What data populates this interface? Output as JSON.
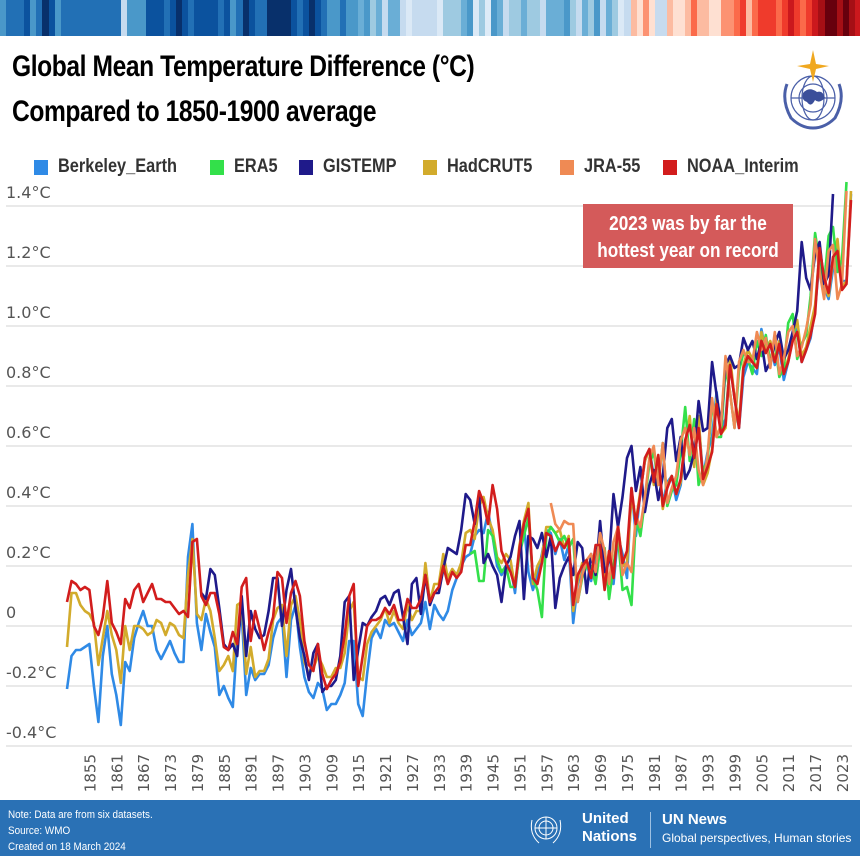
{
  "stripes": [
    "#4a98c9",
    "#2270b5",
    "#2270b5",
    "#2270b5",
    "#0b529e",
    "#4a98c9",
    "#2270b5",
    "#08306b",
    "#0b529e",
    "#4a98c9",
    "#2270b5",
    "#2270b5",
    "#2270b5",
    "#2270b5",
    "#2270b5",
    "#2270b5",
    "#2270b5",
    "#2270b5",
    "#2270b5",
    "#2270b5",
    "#c6dbef",
    "#4a98c9",
    "#4a98c9",
    "#4a98c9",
    "#0b529e",
    "#0b529e",
    "#0b529e",
    "#2270b5",
    "#0b529e",
    "#08306b",
    "#0b529e",
    "#2270b5",
    "#0b529e",
    "#0b529e",
    "#0b529e",
    "#0b529e",
    "#2270b5",
    "#0b529e",
    "#4a98c9",
    "#2270b5",
    "#08306b",
    "#0b529e",
    "#2270b5",
    "#2270b5",
    "#08306b",
    "#08306b",
    "#08306b",
    "#08306b",
    "#0b529e",
    "#2270b5",
    "#0b529e",
    "#08306b",
    "#0b529e",
    "#2270b5",
    "#4a98c9",
    "#4a98c9",
    "#2270b5",
    "#4a98c9",
    "#4a98c9",
    "#6aaed6",
    "#4a98c9",
    "#9ecae1",
    "#6aaed6",
    "#c6dbef",
    "#6aaed6",
    "#6aaed6",
    "#c6dbef",
    "#dbe9f6",
    "#c6dbef",
    "#c6dbef",
    "#c6dbef",
    "#c6dbef",
    "#dbe9f6",
    "#9ecae1",
    "#9ecae1",
    "#9ecae1",
    "#6aaed6",
    "#4a98c9",
    "#dbe9f6",
    "#9ecae1",
    "#deebf7",
    "#4a98c9",
    "#6aaed6",
    "#c6dbef",
    "#9ecae1",
    "#9ecae1",
    "#6aaed6",
    "#9ecae1",
    "#9ecae1",
    "#c6dbef",
    "#6aaed6",
    "#6aaed6",
    "#6aaed6",
    "#4a98c9",
    "#9ecae1",
    "#c6dbef",
    "#6aaed6",
    "#9ecae1",
    "#4a98c9",
    "#c6dbef",
    "#6aaed6",
    "#9ecae1",
    "#dbe9f6",
    "#c6dbef",
    "#fcbba1",
    "#fee0d2",
    "#fc9272",
    "#fee0d2",
    "#c6dbef",
    "#c6dbef",
    "#fcbba1",
    "#fee0d2",
    "#fee0d2",
    "#fcbba1",
    "#fb6a4a",
    "#fcbba1",
    "#fcbba1",
    "#fee0d2",
    "#fee0d2",
    "#fc9272",
    "#fc9272",
    "#fb6a4a",
    "#ef3b2c",
    "#fcbba1",
    "#fb6a4a",
    "#ef3b2c",
    "#ef3b2c",
    "#ef3b2c",
    "#fb6a4a",
    "#ef3b2c",
    "#cb181d",
    "#ef3b2c",
    "#fb6a4a",
    "#ef3b2c",
    "#cb181d",
    "#a50f15",
    "#67000d",
    "#67000d",
    "#a50f15",
    "#67000d",
    "#a50f15",
    "#cb181d"
  ],
  "header": {
    "title_line1": "Global Mean Temperature Difference (°C)",
    "title_line2": "Compared to 1850-1900 average",
    "logo": "wmo-emblem"
  },
  "footer": {
    "note": "Note:  Data are from six datasets.",
    "source": "Source: WMO",
    "created": "Created on 18 March 2024",
    "un_line1": "United",
    "un_line2": "Nations",
    "un_news": "UN News",
    "tagline": "Global perspectives, Human stories"
  },
  "chart_data": {
    "type": "line",
    "title": "Global Mean Temperature Difference (°C) Compared to 1850-1900 average",
    "xlabel": "",
    "ylabel": "",
    "ylim": [
      -0.4,
      1.4
    ],
    "xlim": [
      1850,
      2023
    ],
    "grid": true,
    "legend_position": "top",
    "y_ticks": [
      1.4,
      1.2,
      1.0,
      0.8,
      0.6,
      0.4,
      0.2,
      0,
      -0.2,
      -0.4
    ],
    "y_tick_labels": [
      "1.4°C",
      "1.2°C",
      "1.0°C",
      "0.8°C",
      "0.6°C",
      "0.4°C",
      "0.2°C",
      "0",
      "-0.2°C",
      "-0.4°C"
    ],
    "x_ticks": [
      "1855",
      "1861",
      "1867",
      "1873",
      "1879",
      "1885",
      "1891",
      "1897",
      "1903",
      "1909",
      "1915",
      "1921",
      "1927",
      "1933",
      "1939",
      "1945",
      "1951",
      "1957",
      "1963",
      "1969",
      "1975",
      "1981",
      "1987",
      "1993",
      "1999",
      "2005",
      "2011",
      "2017",
      "2023"
    ],
    "annotation": "2023 was by far the hottest year on record",
    "annotation_color": "#d45a5a",
    "series": [
      {
        "name": "Berkeley_Earth",
        "color": "#2f8ae6",
        "start": 1850,
        "values": [
          -0.21,
          -0.1,
          -0.08,
          -0.08,
          -0.07,
          -0.06,
          -0.2,
          -0.32,
          -0.1,
          0,
          -0.16,
          -0.23,
          -0.33,
          -0.12,
          -0.15,
          -0.04,
          0.01,
          0.05,
          0,
          0,
          -0.08,
          -0.11,
          -0.08,
          -0.05,
          -0.09,
          -0.12,
          -0.12,
          0.23,
          0.34,
          0.01,
          -0.08,
          0.04,
          -0.02,
          -0.07,
          -0.23,
          -0.2,
          -0.24,
          -0.27,
          -0.04,
          0.04,
          -0.23,
          -0.14,
          -0.18,
          -0.16,
          -0.16,
          -0.13,
          -0.04,
          0.01,
          0.03,
          -0.17,
          0.02,
          0.07,
          -0.07,
          -0.17,
          -0.22,
          -0.24,
          -0.19,
          -0.21,
          -0.28,
          -0.26,
          -0.26,
          -0.23,
          -0.19,
          -0.05,
          -0.05,
          -0.26,
          -0.3,
          -0.16,
          -0.04,
          -0.01,
          -0.04,
          0.02,
          0,
          0.01,
          -0.02,
          -0.05,
          0.02,
          -0.03,
          -0.01,
          0.01,
          0.08,
          -0.01,
          0.07,
          0.04,
          0.02,
          0.05,
          0.12,
          0.16,
          0.2,
          0.23,
          0.24,
          0.3,
          0.32,
          0.31,
          0.38,
          0.3,
          0.2,
          0.17,
          0.2,
          0.2,
          0.11,
          0.26,
          0.34,
          0.18,
          0.12,
          0.17,
          0.24,
          0.32,
          0.31,
          0.24,
          0.29,
          0.22,
          0.27,
          0.01,
          0.14,
          0.19,
          0.21,
          0.15,
          0.23,
          0.29,
          0.13,
          0.24,
          0.14,
          0.3,
          0.24,
          0.16,
          0.46,
          0.3,
          0.45,
          0.55,
          0.59,
          0.5,
          0.54,
          0.41,
          0.48,
          0.5,
          0.42,
          0.47,
          0.61,
          0.69,
          0.56,
          0.68,
          0.5,
          0.58,
          0.63,
          0.78,
          0.65,
          0.69,
          0.88,
          0.76,
          0.66,
          0.83,
          0.88,
          0.86,
          0.84,
          0.99,
          0.91,
          0.94,
          0.87,
          0.93,
          0.82,
          0.88,
          0.96,
          0.99,
          0.88,
          0.92,
          0.96,
          1.06,
          1.22,
          1.13,
          1.09,
          1.19,
          1.26,
          1.15,
          1.15,
          1.44
        ]
      },
      {
        "name": "ERA5",
        "color": "#33e04a",
        "start": 1940,
        "values": [
          0.24,
          0.25,
          0.15,
          0.15,
          0.32,
          0.3,
          0.22,
          0.18,
          0.2,
          0.13,
          0.13,
          0.24,
          0.3,
          0.36,
          0.16,
          0.12,
          0.03,
          0.3,
          0.33,
          0.31,
          0.28,
          0.3,
          0.26,
          0.29,
          0.08,
          0.16,
          0.2,
          0.2,
          0.14,
          0.26,
          0.26,
          0.09,
          0.2,
          0.3,
          0.12,
          0.13,
          0.07,
          0.36,
          0.3,
          0.42,
          0.54,
          0.58,
          0.47,
          0.61,
          0.4,
          0.45,
          0.47,
          0.58,
          0.73,
          0.55,
          0.69,
          0.47,
          0.52,
          0.55,
          0.75,
          0.63,
          0.63,
          0.86,
          0.78,
          0.66,
          0.85,
          0.91,
          0.89,
          0.84,
          0.95,
          0.9,
          0.97,
          0.88,
          0.95,
          0.83,
          0.86,
          1.01,
          1.04,
          0.89,
          0.94,
          0.97,
          1.1,
          1.31,
          1.21,
          1.14,
          1.3,
          1.33,
          1.18,
          1.22,
          1.48
        ]
      },
      {
        "name": "GISTEMP",
        "color": "#1f1a8a",
        "start": 1880,
        "values": [
          0.11,
          0.09,
          0.19,
          0.17,
          0.06,
          -0.06,
          -0.08,
          -0.06,
          -0.1,
          0.1,
          -0.1,
          0.05,
          -0.01,
          -0.04,
          -0.03,
          0.05,
          0.16,
          0.16,
          0,
          0.12,
          0.19,
          0.06,
          -0.04,
          -0.1,
          -0.18,
          -0.09,
          -0.06,
          -0.22,
          -0.2,
          -0.2,
          -0.18,
          -0.1,
          0.08,
          0.1,
          -0.18,
          -0.08,
          0.01,
          0,
          0.03,
          0.05,
          0.09,
          0.1,
          0.07,
          0.11,
          0.12,
          0.03,
          -0.06,
          0.14,
          0.16,
          0.04,
          0.17,
          0.07,
          0.11,
          0.11,
          0.19,
          0.26,
          0.25,
          0.24,
          0.32,
          0.44,
          0.42,
          0.34,
          0.44,
          0.21,
          0.24,
          0.2,
          0.17,
          0.08,
          0.2,
          0.23,
          0.3,
          0.35,
          0.09,
          0.3,
          0.29,
          0.26,
          0.31,
          0.23,
          0.3,
          0.06,
          0.16,
          0.2,
          0.23,
          0.17,
          0.28,
          0.26,
          0.11,
          0.24,
          0.17,
          0.35,
          0.18,
          0.22,
          0.44,
          0.33,
          0.43,
          0.56,
          0.6,
          0.45,
          0.53,
          0.38,
          0.47,
          0.52,
          0.42,
          0.5,
          0.66,
          0.69,
          0.55,
          0.63,
          0.49,
          0.52,
          0.58,
          0.75,
          0.65,
          0.66,
          0.88,
          0.77,
          0.67,
          0.87,
          0.9,
          0.86,
          0.87,
          0.96,
          0.92,
          0.95,
          0.89,
          0.95,
          0.85,
          0.88,
          0.94,
          0.98,
          0.89,
          0.92,
          0.98,
          1.05,
          1.28,
          1.16,
          1.12,
          1.24,
          1.28,
          1.14,
          1.17,
          1.44
        ]
      },
      {
        "name": "HadCRUT5",
        "color": "#d2ab2c",
        "start": 1850,
        "values": [
          -0.07,
          0.11,
          0.11,
          0.07,
          0.05,
          0.04,
          0.01,
          -0.13,
          -0.04,
          0.05,
          -0.03,
          -0.08,
          -0.19,
          0,
          -0.08,
          0,
          0,
          -0.01,
          -0.03,
          -0.02,
          0.02,
          0.01,
          -0.03,
          0.01,
          0,
          -0.03,
          -0.04,
          0.17,
          0.29,
          0.04,
          0.02,
          0.09,
          0.05,
          -0.04,
          -0.15,
          -0.13,
          -0.1,
          -0.15,
          0.07,
          0.08,
          -0.16,
          -0.07,
          -0.17,
          -0.15,
          -0.15,
          -0.11,
          0.02,
          0.06,
          0.07,
          -0.1,
          0.07,
          0.1,
          0.02,
          -0.12,
          -0.16,
          -0.14,
          -0.1,
          -0.13,
          -0.17,
          -0.17,
          -0.14,
          -0.14,
          -0.09,
          0.05,
          0.08,
          -0.17,
          -0.18,
          -0.06,
          -0.02,
          0,
          0.02,
          0.06,
          0.01,
          0.05,
          0.01,
          -0.01,
          0.07,
          0.02,
          0.05,
          0.05,
          0.21,
          0.08,
          0.14,
          0.14,
          0.24,
          0.16,
          0.19,
          0.17,
          0.21,
          0.31,
          0.32,
          0.29,
          0.4,
          0.43,
          0.36,
          0.32,
          0.23,
          0.21,
          0.24,
          0.22,
          0.13,
          0.27,
          0.35,
          0.41,
          0.14,
          0.2,
          0.23,
          0.33,
          0.33,
          0.31,
          0.32,
          0.26,
          0.3,
          0.05,
          0.15,
          0.21,
          0.22,
          0.17,
          0.25,
          0.28,
          0.14,
          0.25,
          0.18,
          0.34,
          0.2,
          0.21,
          0.43,
          0.35,
          0.45,
          0.55,
          0.59,
          0.47,
          0.56,
          0.39,
          0.47,
          0.5,
          0.44,
          0.48,
          0.6,
          0.7,
          0.53,
          0.7,
          0.47,
          0.51,
          0.59,
          0.76,
          0.64,
          0.66,
          0.9,
          0.76,
          0.68,
          0.87,
          0.92,
          0.89,
          0.86,
          0.98,
          0.92,
          0.95,
          0.89,
          0.95,
          0.85,
          0.89,
          0.96,
          1.02,
          0.9,
          0.93,
          1,
          1.07,
          1.25,
          1.14,
          1.1,
          1.22,
          1.29,
          1.13,
          1.15,
          1.45
        ]
      },
      {
        "name": "JRA-55",
        "color": "#ef8a54",
        "start": 1958,
        "values": [
          0.41,
          0.34,
          0.32,
          0.35,
          0.34,
          0.34,
          0.08,
          0.17,
          0.22,
          0.24,
          0.18,
          0.31,
          0.25,
          0.14,
          0.28,
          0.33,
          0.17,
          0.21,
          0.18,
          0.37,
          0.33,
          0.43,
          0.56,
          0.6,
          0.47,
          0.61,
          0.41,
          0.46,
          0.5,
          0.62,
          0.66,
          0.57,
          0.66,
          0.52,
          0.47,
          0.57,
          0.76,
          0.63,
          0.67,
          0.9,
          0.78,
          0.66,
          0.88,
          0.92,
          0.88,
          0.88,
          0.98,
          0.92,
          0.96,
          0.86,
          0.98,
          0.84,
          0.89,
          0.98,
          1,
          0.9,
          0.93,
          0.99,
          1.07,
          1.29,
          1.18,
          1.09,
          1.25,
          1.27,
          1.09,
          1.14,
          1.45
        ]
      },
      {
        "name": "NOAA_Interim",
        "color": "#d21d1d",
        "start": 1850,
        "values": [
          0.08,
          0.15,
          0.14,
          0.12,
          0.13,
          0.12,
          0,
          -0.03,
          0.03,
          0.15,
          0.01,
          -0.02,
          -0.06,
          0.09,
          0.06,
          0.12,
          0.14,
          0.08,
          0.11,
          0.14,
          0.09,
          0.09,
          0.08,
          0.08,
          0.06,
          0.04,
          0.05,
          0.03,
          0.28,
          0.29,
          0.1,
          0.07,
          0.11,
          0.11,
          0.04,
          -0.07,
          -0.08,
          -0.02,
          -0.06,
          0.13,
          0.16,
          -0.05,
          0.05,
          -0.01,
          -0.08,
          -0.02,
          0.03,
          0.18,
          0.16,
          0.01,
          0.11,
          0.15,
          0.1,
          -0.05,
          -0.13,
          -0.15,
          -0.06,
          -0.16,
          -0.21,
          -0.18,
          -0.16,
          -0.12,
          -0.03,
          0.1,
          0.14,
          -0.2,
          -0.1,
          0,
          0.02,
          0.02,
          0.03,
          0.06,
          0.04,
          0.07,
          0.02,
          0.02,
          0.09,
          0.06,
          0.06,
          0.09,
          0.17,
          0.08,
          0.11,
          0.13,
          0.2,
          0.14,
          0.18,
          0.16,
          0.18,
          0.27,
          0.27,
          0.35,
          0.45,
          0.41,
          0.34,
          0.47,
          0.39,
          0.25,
          0.21,
          0.18,
          0.13,
          0.26,
          0.34,
          0.39,
          0.16,
          0.14,
          0.21,
          0.31,
          0.3,
          0.25,
          0.28,
          0.26,
          0.29,
          0.07,
          0.17,
          0.2,
          0.22,
          0.16,
          0.27,
          0.27,
          0.12,
          0.25,
          0.16,
          0.33,
          0.21,
          0.25,
          0.46,
          0.34,
          0.44,
          0.56,
          0.59,
          0.48,
          0.57,
          0.4,
          0.46,
          0.5,
          0.44,
          0.49,
          0.62,
          0.67,
          0.56,
          0.66,
          0.49,
          0.53,
          0.58,
          0.74,
          0.64,
          0.67,
          0.87,
          0.76,
          0.66,
          0.86,
          0.9,
          0.88,
          0.86,
          0.95,
          0.91,
          0.94,
          0.88,
          0.94,
          0.84,
          0.88,
          0.95,
          0.98,
          0.88,
          0.92,
          0.97,
          1.04,
          1.26,
          1.16,
          1.11,
          1.23,
          1.25,
          1.12,
          1.14,
          1.42
        ]
      }
    ]
  }
}
